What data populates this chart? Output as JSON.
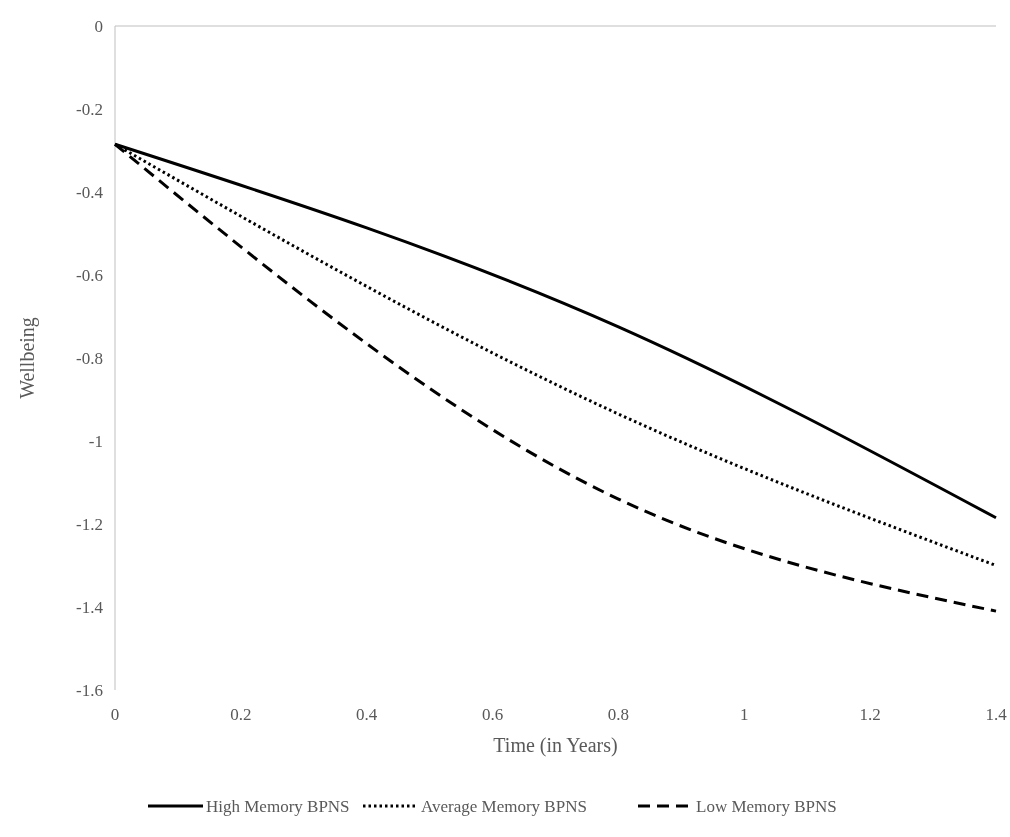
{
  "chart_data": {
    "type": "line",
    "xlabel": "Time (in Years)",
    "ylabel": "Wellbeing",
    "x": [
      0,
      0.8,
      1.4
    ],
    "series": [
      {
        "name": "High Memory BPNS",
        "color": "#000000",
        "line_style": "solid",
        "values": [
          -0.285,
          -0.725,
          -1.185
        ]
      },
      {
        "name": "Average Memory BPNS",
        "color": "#000000",
        "line_style": "dotted",
        "values": [
          -0.285,
          -0.935,
          -1.3
        ]
      },
      {
        "name": "Low Memory BPNS",
        "color": "#000000",
        "line_style": "dashed",
        "values": [
          -0.285,
          -1.14,
          -1.41
        ]
      }
    ],
    "xlim": [
      0,
      1.4
    ],
    "xticks": [
      0,
      0.2,
      0.4,
      0.6,
      0.8,
      1,
      1.2,
      1.4
    ],
    "ylim": [
      -1.6,
      0
    ],
    "yticks": [
      -1.6,
      -1.4,
      -1.2,
      -1,
      -0.8,
      -0.6,
      -0.4,
      -0.2,
      0
    ],
    "grid": false,
    "legend": "bottom",
    "marker": "none"
  }
}
